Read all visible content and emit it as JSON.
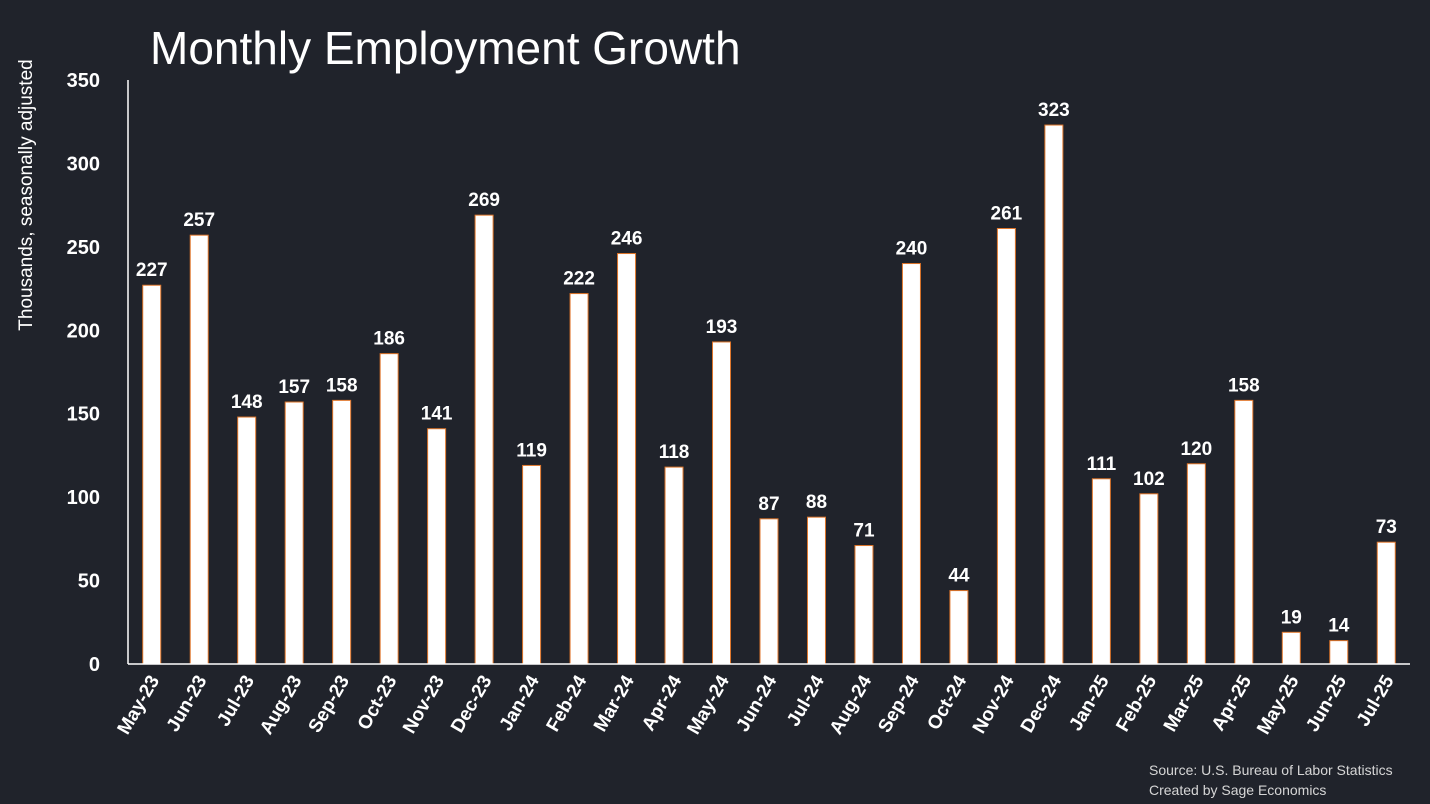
{
  "chart_data": {
    "type": "bar",
    "title": "Monthly Employment Growth",
    "xlabel": "",
    "ylabel": "Thousands, seasonally adjusted",
    "ylim": [
      0,
      350
    ],
    "yticks": [
      0,
      50,
      100,
      150,
      200,
      250,
      300,
      350
    ],
    "grid": false,
    "bar_color": "#ffffff",
    "bar_edge_color": "#e0762b",
    "background_color": "#20232b",
    "categories": [
      "May-23",
      "Jun-23",
      "Jul-23",
      "Aug-23",
      "Sep-23",
      "Oct-23",
      "Nov-23",
      "Dec-23",
      "Jan-24",
      "Feb-24",
      "Mar-24",
      "Apr-24",
      "May-24",
      "Jun-24",
      "Jul-24",
      "Aug-24",
      "Sep-24",
      "Oct-24",
      "Nov-24",
      "Dec-24",
      "Jan-25",
      "Feb-25",
      "Mar-25",
      "Apr-25",
      "May-25",
      "Jun-25",
      "Jul-25"
    ],
    "values": [
      227,
      257,
      148,
      157,
      158,
      186,
      141,
      269,
      119,
      222,
      246,
      118,
      193,
      87,
      88,
      71,
      240,
      44,
      261,
      323,
      111,
      102,
      120,
      158,
      19,
      14,
      73
    ]
  },
  "footer": {
    "source": "Source: U.S. Bureau of Labor Statistics",
    "credit": "Created by Sage Economics"
  }
}
